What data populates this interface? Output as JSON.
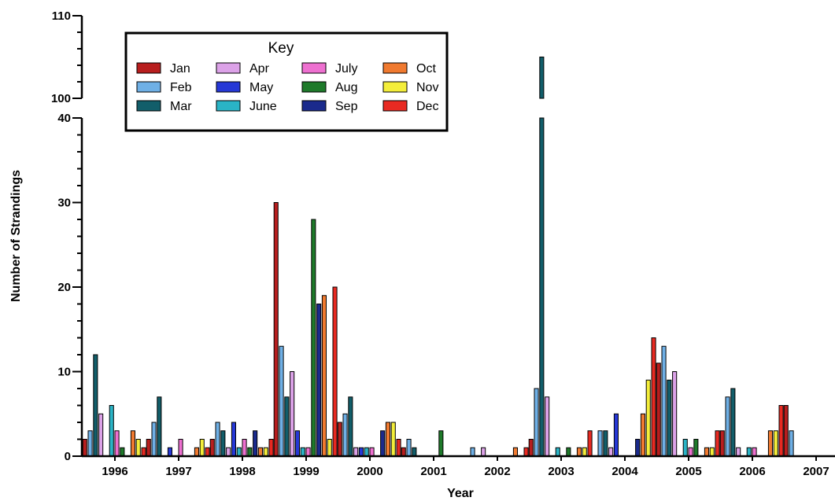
{
  "chart_data": {
    "type": "bar",
    "xlabel": "Year",
    "ylabel": "Number of Strandings",
    "y_axis": {
      "segments": [
        [
          0,
          40
        ],
        [
          100,
          110
        ]
      ],
      "ticks": [
        0,
        10,
        20,
        30,
        40,
        100,
        110
      ],
      "broken": true
    },
    "categories": [
      "1996",
      "1997",
      "1998",
      "1999",
      "2000",
      "2001",
      "2002",
      "2003",
      "2004",
      "2005",
      "2006",
      "2007"
    ],
    "legend": {
      "title": "Key",
      "position": "top-left"
    },
    "series": [
      {
        "name": "Jan",
        "color": "#b81e1e",
        "values": [
          2,
          2,
          2,
          30,
          4,
          1,
          0,
          2,
          0,
          11,
          3,
          6
        ]
      },
      {
        "name": "Feb",
        "color": "#6fb0e6",
        "values": [
          3,
          4,
          4,
          13,
          5,
          2,
          1,
          8,
          3,
          13,
          7,
          3
        ]
      },
      {
        "name": "Mar",
        "color": "#125e6a",
        "values": [
          12,
          7,
          3,
          7,
          7,
          1,
          0,
          105,
          3,
          9,
          8,
          0
        ]
      },
      {
        "name": "Apr",
        "color": "#dca2e8",
        "values": [
          5,
          0,
          1,
          10,
          1,
          0,
          1,
          7,
          1,
          10,
          1,
          0
        ]
      },
      {
        "name": "May",
        "color": "#2638d6",
        "values": [
          0,
          1,
          4,
          3,
          1,
          0,
          0,
          0,
          5,
          0,
          0,
          0
        ]
      },
      {
        "name": "June",
        "color": "#2ab4c6",
        "values": [
          6,
          0,
          1,
          1,
          1,
          0,
          0,
          1,
          0,
          2,
          1,
          0
        ]
      },
      {
        "name": "July",
        "color": "#ee70d0",
        "values": [
          3,
          2,
          2,
          1,
          1,
          0,
          0,
          0,
          0,
          1,
          1,
          0
        ]
      },
      {
        "name": "Aug",
        "color": "#1e7a2a",
        "values": [
          1,
          0,
          1,
          28,
          0,
          3,
          0,
          1,
          0,
          2,
          0,
          0
        ]
      },
      {
        "name": "Sep",
        "color": "#1a2a8c",
        "values": [
          0,
          0,
          3,
          18,
          3,
          0,
          0,
          0,
          2,
          0,
          0,
          0
        ]
      },
      {
        "name": "Oct",
        "color": "#f07a30",
        "values": [
          3,
          1,
          1,
          19,
          4,
          0,
          1,
          1,
          5,
          1,
          3,
          0
        ]
      },
      {
        "name": "Nov",
        "color": "#f4ee3a",
        "values": [
          2,
          2,
          1,
          2,
          4,
          0,
          0,
          1,
          9,
          1,
          3,
          0
        ]
      },
      {
        "name": "Dec",
        "color": "#e82a22",
        "values": [
          1,
          1,
          2,
          20,
          2,
          0,
          1,
          3,
          14,
          3,
          6,
          0
        ]
      }
    ]
  }
}
